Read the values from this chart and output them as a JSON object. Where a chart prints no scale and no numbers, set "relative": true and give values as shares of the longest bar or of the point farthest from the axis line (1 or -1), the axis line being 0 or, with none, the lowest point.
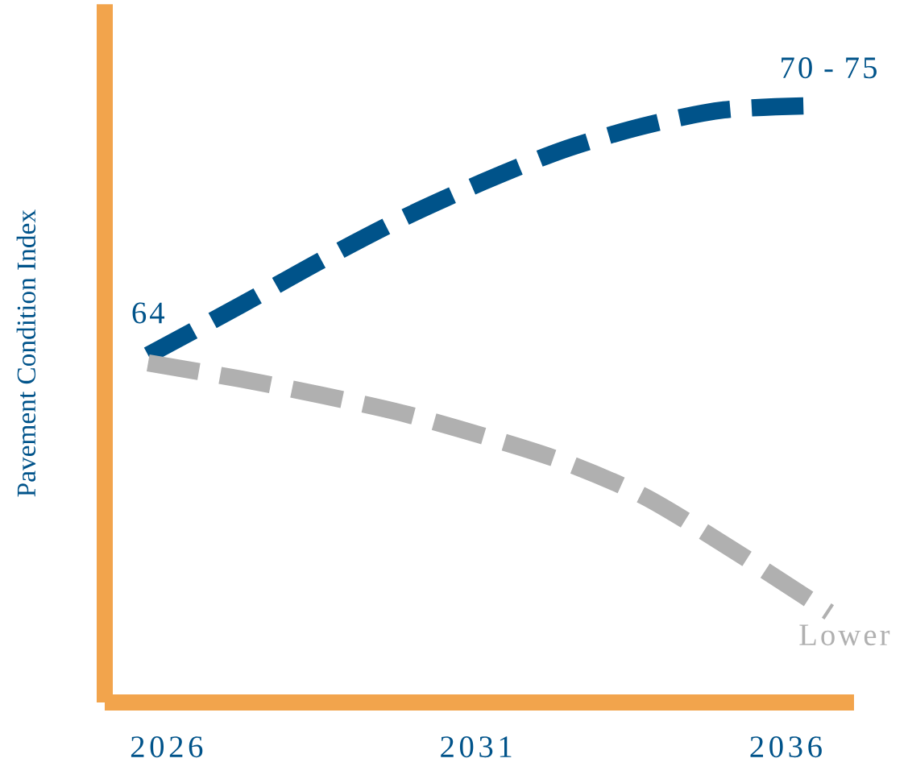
{
  "chart_data": {
    "type": "line",
    "relative": true,
    "ylabel": "Pavement Condition Index",
    "xlim": [
      2025,
      2037.1
    ],
    "xticks": [
      2026,
      2031,
      2036
    ],
    "tick_labels": "x",
    "line_style": "dashed",
    "marker": "none",
    "series": [
      {
        "color": "#00538a",
        "x": [
          2025.7,
          2027.2,
          2028.5,
          2029.8,
          2031.1,
          2032.4,
          2033.7,
          2035.0,
          2036.4
        ],
        "values": [
          0.582,
          0.666,
          0.741,
          0.811,
          0.872,
          0.926,
          0.966,
          0.993,
          1.0
        ]
      },
      {
        "color": "#b0b0b0",
        "x": [
          2025.7,
          2027.2,
          2028.5,
          2029.8,
          2031.1,
          2032.4,
          2033.7,
          2035.0,
          2036.3,
          2036.7
        ],
        "values": [
          0.569,
          0.542,
          0.515,
          0.485,
          0.447,
          0.404,
          0.346,
          0.265,
          0.178,
          0.151
        ]
      }
    ],
    "annotations": [
      {
        "text": "64",
        "x": 2025.7,
        "y": 0.582
      },
      {
        "text": "70 - 75",
        "x": 2036.4,
        "y": 1.0
      },
      {
        "text": "Lower",
        "x": 2036.7,
        "y": 0.151
      }
    ]
  }
}
